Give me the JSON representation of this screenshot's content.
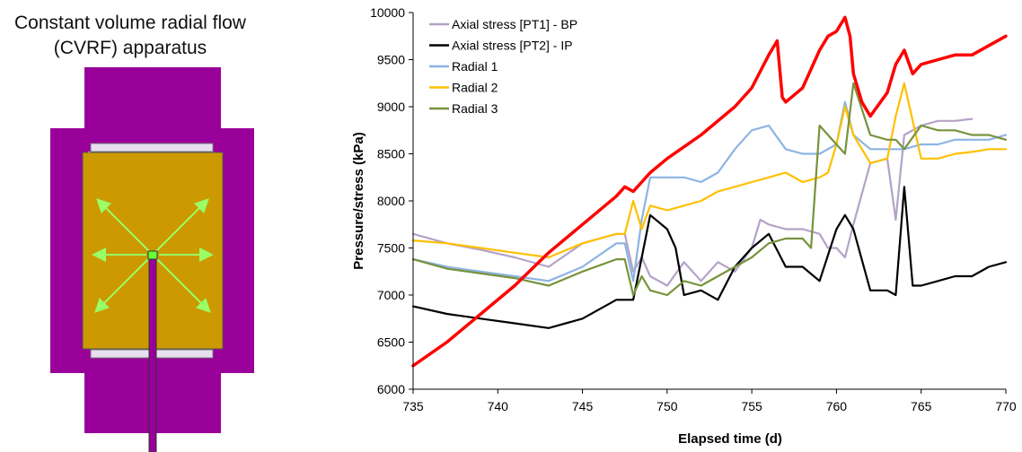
{
  "apparatus": {
    "title_line1": "Constant volume radial flow",
    "title_line2": "(CVRF) apparatus",
    "colors": {
      "frame": "#990099",
      "sample": "#cc9900",
      "platen": "#e8e0f0",
      "arrows": "#99ff66",
      "inlet": "#66ff33"
    }
  },
  "chart_data": {
    "type": "line",
    "xlabel": "Elapsed time (d)",
    "ylabel": "Pressure/stress (kPa)",
    "xlim": [
      735,
      770
    ],
    "ylim": [
      6000,
      10000
    ],
    "xticks": [
      "735",
      "740",
      "745",
      "750",
      "755",
      "760",
      "765",
      "770"
    ],
    "yticks": [
      "6000",
      "6500",
      "7000",
      "7500",
      "8000",
      "8500",
      "9000",
      "9500",
      "10000"
    ],
    "grid": false,
    "legend_position": "top-left",
    "series": [
      {
        "name": "Axial stress [PT1] - BP",
        "color": "#b4a2c8",
        "x": [
          735,
          737,
          739,
          741,
          743,
          745,
          747,
          747.5,
          748,
          748.5,
          749,
          750,
          751,
          752,
          753,
          754,
          755,
          755.5,
          756,
          757,
          758,
          759,
          759.5,
          760,
          760.5,
          761,
          762,
          763,
          763.5,
          764,
          765,
          766,
          767,
          768
        ],
        "y": [
          7650,
          7550,
          7480,
          7400,
          7300,
          7550,
          7650,
          7650,
          7250,
          7400,
          7200,
          7100,
          7350,
          7150,
          7350,
          7250,
          7500,
          7800,
          7750,
          7700,
          7700,
          7650,
          7500,
          7500,
          7400,
          7750,
          8400,
          8450,
          7800,
          8700,
          8800,
          8850,
          8850,
          8870
        ]
      },
      {
        "name": "Axial stress [PT2] - IP",
        "color": "#000000",
        "x": [
          735,
          737,
          739,
          741,
          743,
          745,
          747,
          747.5,
          748,
          748.5,
          749,
          750,
          750.5,
          751,
          752,
          753,
          754,
          755,
          756,
          757,
          758,
          759,
          760,
          760.5,
          761,
          762,
          763,
          763.5,
          764,
          764.5,
          765,
          766,
          767,
          768,
          769,
          770
        ],
        "y": [
          6880,
          6800,
          6750,
          6700,
          6650,
          6750,
          6950,
          6950,
          6950,
          7400,
          7850,
          7700,
          7500,
          7000,
          7050,
          6950,
          7300,
          7500,
          7650,
          7300,
          7300,
          7150,
          7700,
          7850,
          7700,
          7050,
          7050,
          7000,
          8150,
          7100,
          7100,
          7150,
          7200,
          7200,
          7300,
          7350
        ]
      },
      {
        "name": "Radial 1",
        "color": "#8db4e2",
        "x": [
          735,
          737,
          739,
          741,
          743,
          745,
          747,
          747.5,
          748,
          748.5,
          749,
          750,
          751,
          752,
          753,
          754,
          755,
          756,
          757,
          758,
          759,
          760,
          760.5,
          761,
          762,
          763,
          764,
          765,
          766,
          767,
          768,
          769,
          770
        ],
        "y": [
          7380,
          7300,
          7250,
          7200,
          7150,
          7300,
          7550,
          7550,
          7150,
          7800,
          8250,
          8250,
          8250,
          8200,
          8300,
          8550,
          8750,
          8800,
          8550,
          8500,
          8500,
          8600,
          9050,
          8700,
          8550,
          8550,
          8550,
          8600,
          8600,
          8650,
          8650,
          8650,
          8700
        ]
      },
      {
        "name": "Radial 2",
        "color": "#ffc000",
        "x": [
          735,
          737,
          739,
          741,
          743,
          745,
          747,
          747.5,
          748,
          748.5,
          749,
          750,
          751,
          752,
          753,
          754,
          755,
          756,
          757,
          758,
          759,
          759.5,
          760,
          760.5,
          761,
          762,
          763,
          763.5,
          764,
          765,
          766,
          767,
          768,
          769,
          770
        ],
        "y": [
          7580,
          7550,
          7500,
          7450,
          7400,
          7550,
          7650,
          7650,
          8000,
          7700,
          7950,
          7900,
          7950,
          8000,
          8100,
          8150,
          8200,
          8250,
          8300,
          8200,
          8250,
          8300,
          8600,
          9000,
          8700,
          8400,
          8450,
          8900,
          9250,
          8450,
          8450,
          8500,
          8520,
          8550,
          8550
        ]
      },
      {
        "name": "Radial 3",
        "color": "#77933c",
        "x": [
          735,
          737,
          739,
          741,
          743,
          745,
          747,
          747.5,
          748,
          748.5,
          749,
          750,
          751,
          752,
          753,
          754,
          755,
          756,
          757,
          758,
          758.5,
          759,
          760,
          760.5,
          761,
          762,
          763,
          763.5,
          764,
          765,
          766,
          767,
          768,
          769,
          770
        ],
        "y": [
          7380,
          7280,
          7230,
          7180,
          7100,
          7250,
          7380,
          7380,
          7000,
          7200,
          7050,
          7000,
          7150,
          7100,
          7200,
          7300,
          7400,
          7550,
          7600,
          7600,
          7500,
          8800,
          8600,
          8500,
          9250,
          8700,
          8650,
          8650,
          8550,
          8800,
          8750,
          8750,
          8700,
          8700,
          8650
        ]
      },
      {
        "color": "#ff0000",
        "x": [
          735,
          737,
          739,
          741,
          743,
          745,
          747,
          747.5,
          748,
          749,
          750,
          752,
          754,
          755,
          756,
          756.5,
          756.8,
          757,
          758,
          759,
          759.5,
          760,
          760.5,
          760.8,
          761,
          761.5,
          762,
          763,
          763.5,
          764,
          764.5,
          765,
          766,
          767,
          768,
          769,
          770
        ],
        "y": [
          6250,
          6500,
          6800,
          7100,
          7450,
          7750,
          8050,
          8150,
          8100,
          8300,
          8450,
          8700,
          9000,
          9200,
          9550,
          9700,
          9100,
          9050,
          9200,
          9600,
          9750,
          9800,
          9950,
          9750,
          9350,
          9050,
          8900,
          9150,
          9450,
          9600,
          9350,
          9450,
          9500,
          9550,
          9550,
          9650,
          9750
        ]
      }
    ]
  }
}
